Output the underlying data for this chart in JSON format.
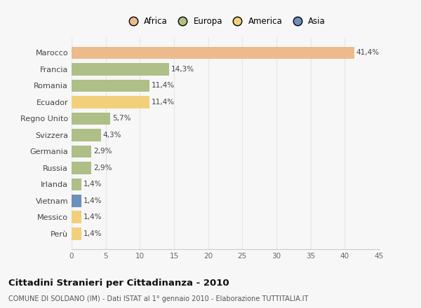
{
  "countries": [
    "Marocco",
    "Francia",
    "Romania",
    "Ecuador",
    "Regno Unito",
    "Svizzera",
    "Germania",
    "Russia",
    "Irlanda",
    "Vietnam",
    "Messico",
    "Perù"
  ],
  "values": [
    41.4,
    14.3,
    11.4,
    11.4,
    5.7,
    4.3,
    2.9,
    2.9,
    1.4,
    1.4,
    1.4,
    1.4
  ],
  "labels": [
    "41,4%",
    "14,3%",
    "11,4%",
    "11,4%",
    "5,7%",
    "4,3%",
    "2,9%",
    "2,9%",
    "1,4%",
    "1,4%",
    "1,4%",
    "1,4%"
  ],
  "colors": [
    "#EDBA8C",
    "#AEBF87",
    "#AEBF87",
    "#F2D07A",
    "#AEBF87",
    "#AEBF87",
    "#AEBF87",
    "#AEBF87",
    "#AEBF87",
    "#6B8FBF",
    "#F2D07A",
    "#F2D07A"
  ],
  "legend_labels": [
    "Africa",
    "Europa",
    "America",
    "Asia"
  ],
  "legend_colors": [
    "#EDBA8C",
    "#AEBF87",
    "#F2D07A",
    "#6B8FBF"
  ],
  "title": "Cittadini Stranieri per Cittadinanza - 2010",
  "subtitle": "COMUNE DI SOLDANO (IM) - Dati ISTAT al 1° gennaio 2010 - Elaborazione TUTTITALIA.IT",
  "xlim": [
    0,
    45
  ],
  "xticks": [
    0,
    5,
    10,
    15,
    20,
    25,
    30,
    35,
    40,
    45
  ],
  "background_color": "#f7f7f7",
  "grid_color": "#e8e8e8",
  "bar_height": 0.75
}
